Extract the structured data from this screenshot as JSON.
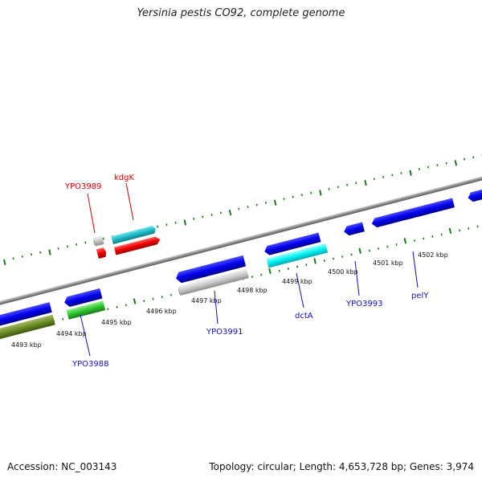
{
  "title": "Yersinia pestis CO92, complete genome",
  "accession": "Accession: NC_003143",
  "summary": "Topology: circular; Length: 4,653,728 bp; Genes: 3,974",
  "colors": {
    "backbone": "#8c8c8c",
    "tick": "#1a7a1a",
    "forward_label": "#d40000",
    "reverse_label": "#1010c0"
  },
  "scale_labels": [
    "4493 kbp",
    "4494 kbp",
    "4495 kbp",
    "4496 kbp",
    "4497 kbp",
    "4498 kbp",
    "4499 kbp",
    "4500 kbp",
    "4501 kbp",
    "4502 kbp"
  ],
  "gene_labels": [
    {
      "id": "YPO3989",
      "text": "YPO3989",
      "strand": "forward"
    },
    {
      "id": "kdgK",
      "text": "kdgK",
      "strand": "forward"
    },
    {
      "id": "YPO3988",
      "text": "YPO3988",
      "strand": "reverse"
    },
    {
      "id": "YPO3991",
      "text": "YPO3991",
      "strand": "reverse"
    },
    {
      "id": "dctA",
      "text": "dctA",
      "strand": "reverse"
    },
    {
      "id": "YPO3993",
      "text": "YPO3993",
      "strand": "reverse"
    },
    {
      "id": "pelY",
      "text": "pelY",
      "strand": "reverse"
    }
  ]
}
